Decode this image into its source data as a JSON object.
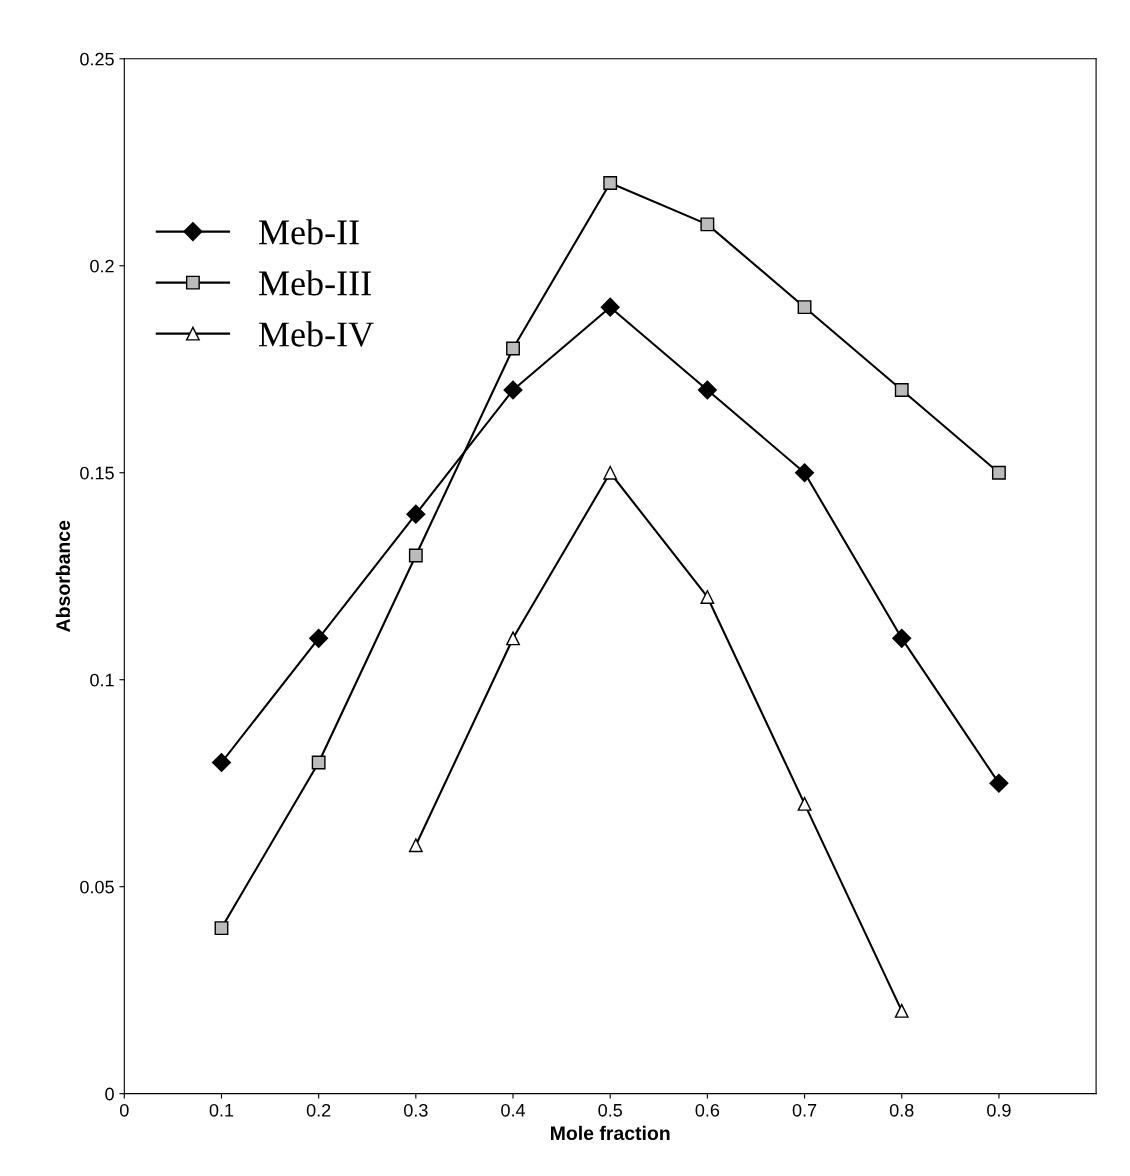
{
  "chart_data": {
    "type": "line",
    "xlabel": "Mole fraction",
    "ylabel": "Absorbance",
    "xlim": [
      0,
      1
    ],
    "ylim": [
      0,
      0.25
    ],
    "xticks": [
      0,
      0.1,
      0.2,
      0.3,
      0.4,
      0.5,
      0.6,
      0.7,
      0.8,
      0.9
    ],
    "yticks": [
      0,
      0.05,
      0.1,
      0.15,
      0.2,
      0.25
    ],
    "grid": false,
    "legend": "left",
    "line_style": "solid",
    "series": [
      {
        "name": "Meb-II",
        "color": "#000000",
        "marker": "diamond",
        "x": [
          0.1,
          0.2,
          0.3,
          0.4,
          0.5,
          0.6,
          0.7,
          0.8,
          0.9
        ],
        "values": [
          0.08,
          0.11,
          0.14,
          0.17,
          0.19,
          0.17,
          0.15,
          0.11,
          0.075
        ]
      },
      {
        "name": "Meb-III",
        "color": "#000000",
        "marker": "square",
        "x": [
          0.1,
          0.2,
          0.3,
          0.4,
          0.5,
          0.6,
          0.7,
          0.8,
          0.9
        ],
        "values": [
          0.04,
          0.08,
          0.13,
          0.18,
          0.22,
          0.21,
          0.19,
          0.17,
          0.15
        ]
      },
      {
        "name": "Meb-IV",
        "color": "#000000",
        "marker": "triangle",
        "x": [
          0.3,
          0.4,
          0.5,
          0.6,
          0.7,
          0.8
        ],
        "values": [
          0.06,
          0.11,
          0.15,
          0.12,
          0.07,
          0.02
        ]
      }
    ]
  }
}
